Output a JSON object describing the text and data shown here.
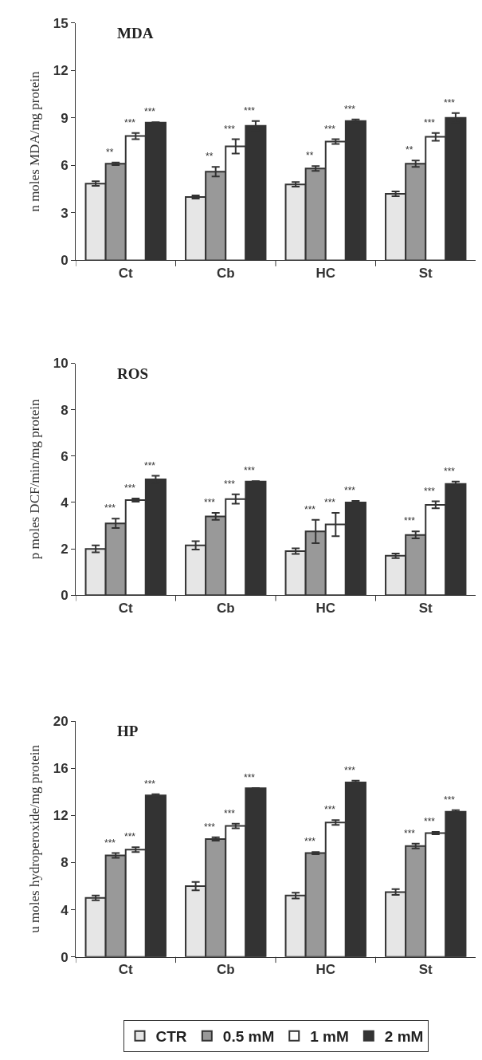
{
  "chart_data": [
    {
      "type": "bar",
      "title": "MDA",
      "ylabel": "n moles MDA/mg protein",
      "categories": [
        "Ct",
        "Cb",
        "HC",
        "St"
      ],
      "ylim": [
        0,
        15
      ],
      "yticks": [
        0,
        3,
        6,
        9,
        12,
        15
      ],
      "grid": false,
      "series": [
        {
          "color": "#e6e6e6",
          "values": [
            4.85,
            4.0,
            4.8,
            4.2
          ],
          "errors": [
            0.15,
            0.1,
            0.15,
            0.15
          ]
        },
        {
          "color": "#999999",
          "values": [
            6.1,
            5.6,
            5.8,
            6.1
          ],
          "errors": [
            0.08,
            0.3,
            0.15,
            0.2
          ],
          "value_labels": [
            "**",
            "**",
            "**",
            "**"
          ]
        },
        {
          "color": "#ffffff",
          "values": [
            7.85,
            7.2,
            7.5,
            7.8
          ],
          "errors": [
            0.2,
            0.45,
            0.15,
            0.25
          ],
          "value_labels": [
            "***",
            "***",
            "***",
            "***"
          ]
        },
        {
          "color": "#333333",
          "values": [
            8.7,
            8.5,
            8.8,
            9.0
          ],
          "errors": [
            0.02,
            0.3,
            0.1,
            0.3
          ],
          "value_labels": [
            "***",
            "***",
            "***",
            "***"
          ]
        }
      ]
    },
    {
      "type": "bar",
      "title": "ROS",
      "ylabel": "p moles DCF/min/mg protein",
      "categories": [
        "Ct",
        "Cb",
        "HC",
        "St"
      ],
      "ylim": [
        0,
        10
      ],
      "yticks": [
        0,
        2,
        4,
        6,
        8,
        10
      ],
      "grid": false,
      "series": [
        {
          "color": "#e6e6e6",
          "values": [
            2.0,
            2.15,
            1.9,
            1.7
          ],
          "errors": [
            0.15,
            0.18,
            0.12,
            0.1
          ]
        },
        {
          "color": "#999999",
          "values": [
            3.1,
            3.4,
            2.75,
            2.6
          ],
          "errors": [
            0.2,
            0.15,
            0.5,
            0.15
          ],
          "value_labels": [
            "***",
            "***",
            "***",
            "***"
          ]
        },
        {
          "color": "#ffffff",
          "values": [
            4.1,
            4.15,
            3.05,
            3.9
          ],
          "errors": [
            0.07,
            0.2,
            0.5,
            0.15
          ],
          "value_labels": [
            "***",
            "***",
            "***",
            "***"
          ]
        },
        {
          "color": "#333333",
          "values": [
            5.0,
            4.9,
            4.0,
            4.8
          ],
          "errors": [
            0.15,
            0.02,
            0.07,
            0.1
          ],
          "value_labels": [
            "***",
            "***",
            "***",
            "***"
          ]
        }
      ]
    },
    {
      "type": "bar",
      "title": "HP",
      "ylabel": "u moles hydroperoxide/mg protein",
      "categories": [
        "Ct",
        "Cb",
        "HC",
        "St"
      ],
      "ylim": [
        0,
        20
      ],
      "yticks": [
        0,
        4,
        8,
        12,
        16,
        20
      ],
      "grid": false,
      "legend": "bottom",
      "series": [
        {
          "name": "CTR",
          "color": "#e6e6e6",
          "values": [
            5.0,
            6.0,
            5.2,
            5.5
          ],
          "errors": [
            0.2,
            0.35,
            0.25,
            0.25
          ]
        },
        {
          "name": "0.5 mM",
          "color": "#999999",
          "values": [
            8.6,
            10.0,
            8.8,
            9.4
          ],
          "errors": [
            0.2,
            0.15,
            0.1,
            0.2
          ],
          "value_labels": [
            "***",
            "***",
            "***",
            "***"
          ]
        },
        {
          "name": "1 mM",
          "color": "#ffffff",
          "values": [
            9.1,
            11.1,
            11.4,
            10.5
          ],
          "errors": [
            0.2,
            0.2,
            0.2,
            0.1
          ],
          "value_labels": [
            "***",
            "***",
            "***",
            "***"
          ]
        },
        {
          "name": "2 mM",
          "color": "#333333",
          "values": [
            13.7,
            14.3,
            14.8,
            12.3
          ],
          "errors": [
            0.1,
            0.02,
            0.15,
            0.15
          ],
          "value_labels": [
            "***",
            "***",
            "***",
            "***"
          ]
        }
      ]
    }
  ]
}
